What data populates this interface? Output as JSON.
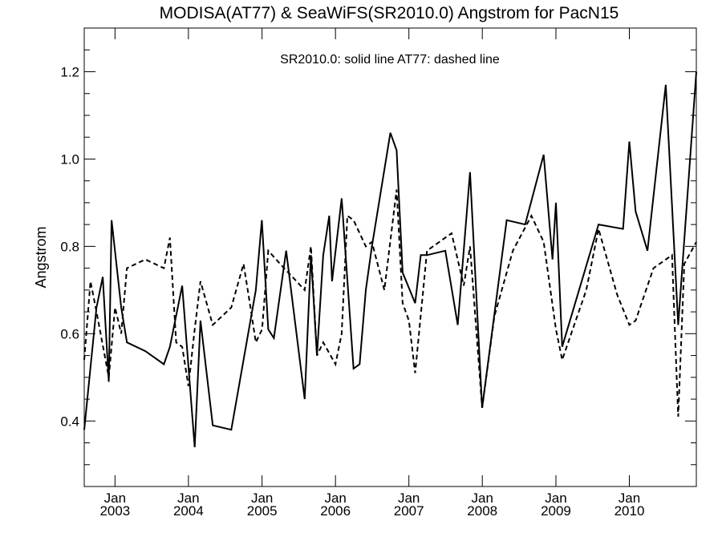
{
  "chart_data": {
    "type": "line",
    "title": "MODISA(AT77) & SeaWiFS(SR2010.0)  Angstrom for PacN15",
    "annotation": "SR2010.0: solid line   AT77: dashed line",
    "ylabel": "Angstrom",
    "xlabel": "",
    "xlim": [
      "2002-08-01",
      "2010-11-30"
    ],
    "ylim": [
      0.25,
      1.3
    ],
    "y_ticks": [
      "0.4",
      "0.6",
      "0.8",
      "1.0",
      "1.2"
    ],
    "x_ticks": [
      {
        "month": "Jan",
        "year": "2003"
      },
      {
        "month": "Jan",
        "year": "2004"
      },
      {
        "month": "Jan",
        "year": "2005"
      },
      {
        "month": "Jan",
        "year": "2006"
      },
      {
        "month": "Jan",
        "year": "2007"
      },
      {
        "month": "Jan",
        "year": "2008"
      },
      {
        "month": "Jan",
        "year": "2009"
      },
      {
        "month": "Jan",
        "year": "2010"
      }
    ],
    "series": [
      {
        "name": "SR2010.0",
        "style": "solid",
        "color": "#000000",
        "x": [
          "2002-08-01",
          "2002-10-01",
          "2002-11-01",
          "2002-12-01",
          "2002-12-15",
          "2003-02-01",
          "2003-03-01",
          "2003-06-01",
          "2003-09-01",
          "2003-10-01",
          "2003-12-01",
          "2004-02-01",
          "2004-03-01",
          "2004-05-01",
          "2004-08-01",
          "2004-12-01",
          "2004-12-31",
          "2005-02-01",
          "2005-03-01",
          "2005-05-01",
          "2005-08-01",
          "2005-09-01",
          "2005-10-01",
          "2005-11-01",
          "2005-12-01",
          "2005-12-15",
          "2006-02-01",
          "2006-04-01",
          "2006-05-01",
          "2006-06-01",
          "2006-07-01",
          "2006-10-01",
          "2006-11-01",
          "2006-12-01",
          "2007-02-01",
          "2007-03-01",
          "2007-04-01",
          "2007-07-01",
          "2007-09-01",
          "2007-11-01",
          "2007-12-31",
          "2008-05-01",
          "2008-08-01",
          "2008-11-01",
          "2008-12-15",
          "2009-01-01",
          "2009-02-01",
          "2009-08-01",
          "2009-12-01",
          "2010-01-01",
          "2010-02-01",
          "2010-04-01",
          "2010-07-01",
          "2010-09-01",
          "2010-11-30"
        ],
        "y": [
          0.38,
          0.66,
          0.73,
          0.49,
          0.86,
          0.66,
          0.58,
          0.56,
          0.53,
          0.57,
          0.71,
          0.34,
          0.63,
          0.39,
          0.38,
          0.7,
          0.86,
          0.61,
          0.59,
          0.79,
          0.45,
          0.78,
          0.55,
          0.78,
          0.87,
          0.72,
          0.91,
          0.52,
          0.53,
          0.7,
          0.8,
          1.06,
          1.02,
          0.74,
          0.67,
          0.78,
          0.78,
          0.79,
          0.62,
          0.97,
          0.43,
          0.86,
          0.85,
          1.01,
          0.77,
          0.9,
          0.57,
          0.85,
          0.84,
          1.04,
          0.88,
          0.79,
          1.17,
          0.62,
          1.2
        ]
      },
      {
        "name": "AT77",
        "style": "dashed",
        "color": "#000000",
        "x": [
          "2002-08-01",
          "2002-09-01",
          "2002-10-01",
          "2002-12-01",
          "2003-01-01",
          "2003-02-01",
          "2003-03-01",
          "2003-06-01",
          "2003-09-01",
          "2003-10-01",
          "2003-11-01",
          "2003-12-01",
          "2004-01-01",
          "2004-02-01",
          "2004-03-01",
          "2004-05-01",
          "2004-08-01",
          "2004-10-01",
          "2004-11-01",
          "2004-12-01",
          "2005-01-01",
          "2005-02-01",
          "2005-04-01",
          "2005-08-01",
          "2005-09-01",
          "2005-10-01",
          "2005-11-01",
          "2006-01-01",
          "2006-02-01",
          "2006-03-01",
          "2006-04-01",
          "2006-06-01",
          "2006-07-01",
          "2006-09-01",
          "2006-11-01",
          "2006-12-01",
          "2007-01-01",
          "2007-02-01",
          "2007-04-01",
          "2007-06-01",
          "2007-08-01",
          "2007-10-01",
          "2007-11-01",
          "2007-12-31",
          "2008-03-01",
          "2008-06-01",
          "2008-09-01",
          "2008-11-01",
          "2009-01-01",
          "2009-02-01",
          "2009-06-01",
          "2009-08-01",
          "2009-11-01",
          "2010-01-01",
          "2010-02-01",
          "2010-05-01",
          "2010-08-01",
          "2010-09-01",
          "2010-10-01",
          "2010-11-30"
        ],
        "y": [
          0.54,
          0.72,
          0.65,
          0.5,
          0.66,
          0.6,
          0.75,
          0.77,
          0.75,
          0.82,
          0.58,
          0.57,
          0.48,
          0.61,
          0.72,
          0.62,
          0.66,
          0.76,
          0.67,
          0.58,
          0.61,
          0.79,
          0.76,
          0.7,
          0.8,
          0.55,
          0.58,
          0.53,
          0.6,
          0.87,
          0.86,
          0.8,
          0.81,
          0.7,
          0.93,
          0.67,
          0.63,
          0.51,
          0.79,
          0.81,
          0.83,
          0.71,
          0.8,
          0.43,
          0.64,
          0.79,
          0.87,
          0.81,
          0.61,
          0.54,
          0.7,
          0.84,
          0.69,
          0.62,
          0.63,
          0.75,
          0.78,
          0.41,
          0.76,
          0.81
        ]
      }
    ]
  }
}
